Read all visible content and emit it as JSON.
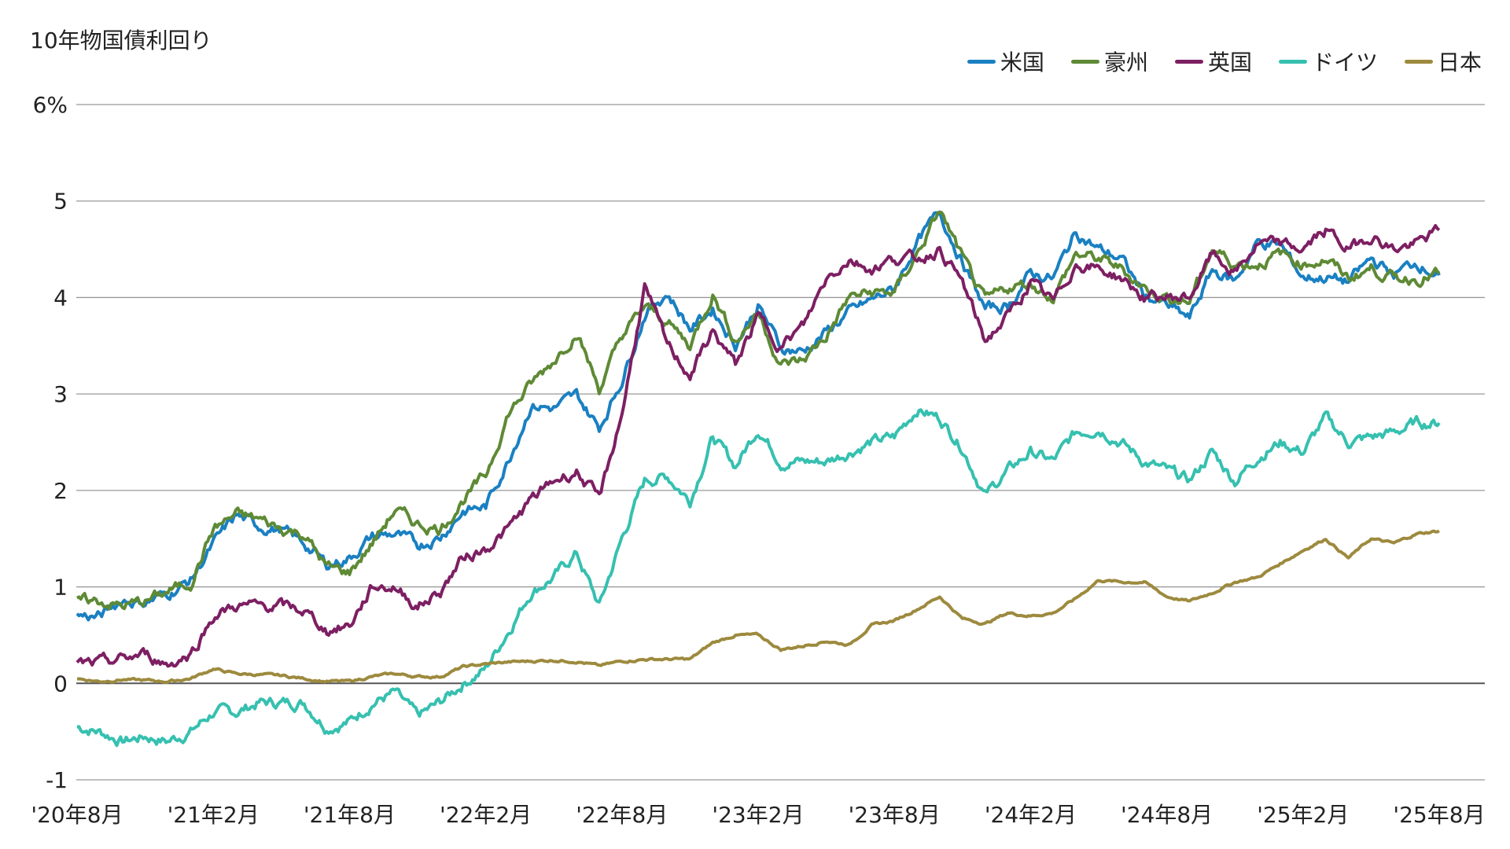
{
  "chart_data": {
    "type": "line",
    "title": "10年物国債利回り",
    "xlabel": "",
    "ylabel": "",
    "ylim": [
      -1,
      6
    ],
    "yticks": [
      6,
      5,
      4,
      3,
      2,
      1,
      0,
      -1
    ],
    "ytick_labels": [
      "6%",
      "5",
      "4",
      "3",
      "2",
      "1",
      "0",
      "-1"
    ],
    "x_start": "2020-08",
    "x_end": "2025-08",
    "xtick_labels": [
      "'20年8月",
      "'21年2月",
      "'21年8月",
      "'22年2月",
      "'22年8月",
      "'23年2月",
      "'23年8月",
      "'24年2月",
      "'24年8月",
      "'25年2月",
      "'25年8月"
    ],
    "grid": true,
    "legend": "top-right",
    "series": [
      {
        "name": "米国",
        "color": "#1a80c2",
        "values": [
          0.7,
          0.69,
          0.87,
          0.84,
          0.93,
          1.07,
          1.44,
          1.74,
          1.63,
          1.59,
          1.45,
          1.23,
          1.3,
          1.52,
          1.55,
          1.43,
          1.52,
          1.79,
          1.83,
          2.32,
          2.89,
          2.85,
          2.98,
          2.65,
          3.15,
          3.83,
          4.05,
          3.68,
          3.88,
          3.52,
          3.92,
          3.48,
          3.44,
          3.64,
          3.84,
          3.97,
          4.09,
          4.57,
          4.88,
          4.37,
          3.88,
          3.91,
          4.25,
          4.2,
          4.68,
          4.5,
          4.4,
          4.03,
          3.91,
          3.78,
          4.28,
          4.17,
          4.57,
          4.54,
          4.21,
          4.21,
          4.16,
          4.4,
          4.24,
          4.37,
          4.23
        ]
      },
      {
        "name": "豪州",
        "color": "#5e8a35",
        "values": [
          0.85,
          0.85,
          0.8,
          0.85,
          0.95,
          1.05,
          1.6,
          1.75,
          1.7,
          1.6,
          1.55,
          1.2,
          1.15,
          1.45,
          1.8,
          1.65,
          1.6,
          1.9,
          2.15,
          2.8,
          3.1,
          3.35,
          3.65,
          3.05,
          3.6,
          3.9,
          3.75,
          3.5,
          4.05,
          3.55,
          3.85,
          3.3,
          3.35,
          3.6,
          4.0,
          4.05,
          4.05,
          4.45,
          4.9,
          4.4,
          3.95,
          4.1,
          4.15,
          4.0,
          4.45,
          4.4,
          4.3,
          4.1,
          4.0,
          3.95,
          4.5,
          4.35,
          4.35,
          4.45,
          4.35,
          4.4,
          4.2,
          4.3,
          4.2,
          4.2,
          4.25
        ]
      },
      {
        "name": "英国",
        "color": "#7d1f63",
        "values": [
          0.2,
          0.2,
          0.25,
          0.3,
          0.2,
          0.3,
          0.7,
          0.8,
          0.8,
          0.8,
          0.75,
          0.55,
          0.6,
          1.0,
          1.0,
          0.8,
          0.95,
          1.3,
          1.4,
          1.6,
          1.9,
          2.1,
          2.2,
          1.9,
          2.8,
          4.1,
          3.5,
          3.2,
          3.65,
          3.3,
          3.8,
          3.5,
          3.7,
          4.2,
          4.4,
          4.3,
          4.4,
          4.4,
          4.5,
          4.15,
          3.55,
          3.8,
          4.15,
          3.95,
          4.35,
          4.3,
          4.2,
          4.0,
          4.0,
          4.0,
          4.45,
          4.25,
          4.55,
          4.55,
          4.5,
          4.7,
          4.5,
          4.65,
          4.5,
          4.55,
          4.7
        ]
      },
      {
        "name": "ドイツ",
        "color": "#36c0b0",
        "values": [
          -0.45,
          -0.5,
          -0.6,
          -0.55,
          -0.6,
          -0.5,
          -0.3,
          -0.3,
          -0.2,
          -0.2,
          -0.2,
          -0.45,
          -0.4,
          -0.2,
          -0.1,
          -0.35,
          -0.2,
          0.0,
          0.15,
          0.55,
          0.95,
          1.1,
          1.35,
          0.8,
          1.5,
          2.1,
          2.15,
          1.9,
          2.55,
          2.25,
          2.65,
          2.3,
          2.3,
          2.3,
          2.4,
          2.5,
          2.55,
          2.85,
          2.75,
          2.45,
          1.95,
          2.2,
          2.4,
          2.3,
          2.6,
          2.65,
          2.5,
          2.3,
          2.2,
          2.1,
          2.4,
          2.1,
          2.35,
          2.5,
          2.4,
          2.75,
          2.5,
          2.55,
          2.6,
          2.7,
          2.7
        ]
      },
      {
        "name": "日本",
        "color": "#9d8a3e",
        "values": [
          0.05,
          0.02,
          0.04,
          0.03,
          0.02,
          0.05,
          0.15,
          0.1,
          0.09,
          0.08,
          0.05,
          0.02,
          0.02,
          0.07,
          0.1,
          0.07,
          0.07,
          0.17,
          0.2,
          0.22,
          0.23,
          0.24,
          0.23,
          0.18,
          0.23,
          0.25,
          0.25,
          0.25,
          0.42,
          0.5,
          0.5,
          0.35,
          0.39,
          0.44,
          0.4,
          0.6,
          0.65,
          0.77,
          0.9,
          0.67,
          0.62,
          0.73,
          0.7,
          0.73,
          0.88,
          1.07,
          1.05,
          1.05,
          0.9,
          0.85,
          0.94,
          1.05,
          1.1,
          1.24,
          1.38,
          1.5,
          1.3,
          1.5,
          1.45,
          1.55,
          1.58
        ]
      }
    ]
  }
}
